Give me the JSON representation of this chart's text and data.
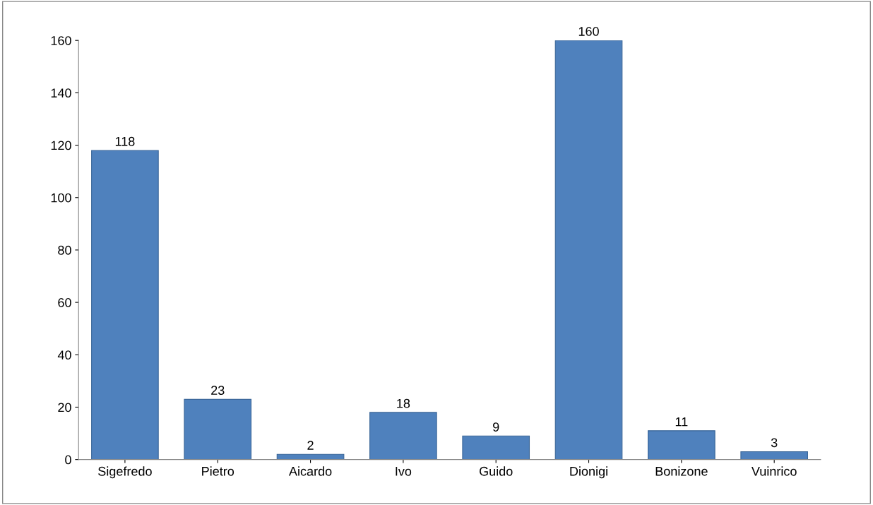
{
  "chart_data": {
    "type": "bar",
    "categories": [
      "Sigefredo",
      "Pietro",
      "Aicardo",
      "Ivo",
      "Guido",
      "Dionigi",
      "Bonizone",
      "Vuinrico"
    ],
    "values": [
      118,
      23,
      2,
      18,
      9,
      160,
      11,
      3
    ],
    "color": "#4f81bd",
    "ylim": [
      0,
      160
    ],
    "yticks": [
      0,
      20,
      40,
      60,
      80,
      100,
      120,
      140,
      160
    ],
    "data_labels": true,
    "grid": false,
    "legend": false
  }
}
